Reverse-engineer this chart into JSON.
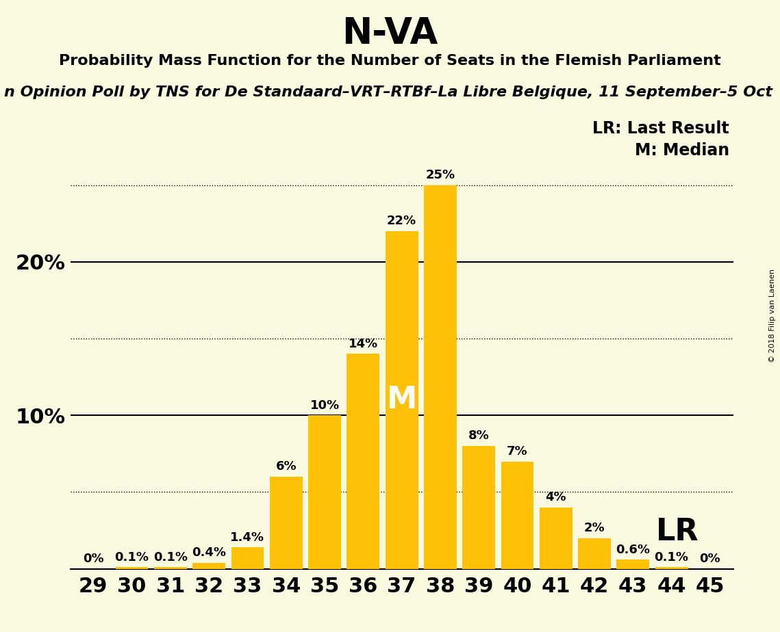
{
  "title": "N-VA",
  "subtitle": "Probability Mass Function for the Number of Seats in the Flemish Parliament",
  "poll_text": "n Opinion Poll by TNS for De Standaard–VRT–RTBf–La Libre Belgique, 11 September–5 Oct",
  "copyright_text": "© 2018 Filip van Laenen",
  "categories": [
    29,
    30,
    31,
    32,
    33,
    34,
    35,
    36,
    37,
    38,
    39,
    40,
    41,
    42,
    43,
    44,
    45
  ],
  "values": [
    0.0,
    0.1,
    0.1,
    0.4,
    1.4,
    6.0,
    10.0,
    14.0,
    22.0,
    25.0,
    8.0,
    7.0,
    4.0,
    2.0,
    0.6,
    0.1,
    0.0
  ],
  "labels": [
    "0%",
    "0.1%",
    "0.1%",
    "0.4%",
    "1.4%",
    "6%",
    "10%",
    "14%",
    "22%",
    "25%",
    "8%",
    "7%",
    "4%",
    "2%",
    "0.6%",
    "0.1%",
    "0%"
  ],
  "bar_color": "#FFC107",
  "background_color": "#FAFAE0",
  "median_seat": 37,
  "last_result_seat": 43,
  "median_label": "M",
  "lr_label": "LR",
  "legend_lr": "LR: Last Result",
  "legend_m": "M: Median",
  "solid_yticks": [
    0,
    10,
    20
  ],
  "dotted_yticks": [
    5,
    15,
    25
  ],
  "ylim": [
    0,
    28
  ],
  "title_fontsize": 38,
  "subtitle_fontsize": 16,
  "poll_fontsize": 16,
  "bar_label_fontsize": 13,
  "axis_label_fontsize": 22,
  "median_label_fontsize": 32,
  "lr_label_fontsize": 32,
  "legend_fontsize": 17,
  "copyright_fontsize": 8
}
